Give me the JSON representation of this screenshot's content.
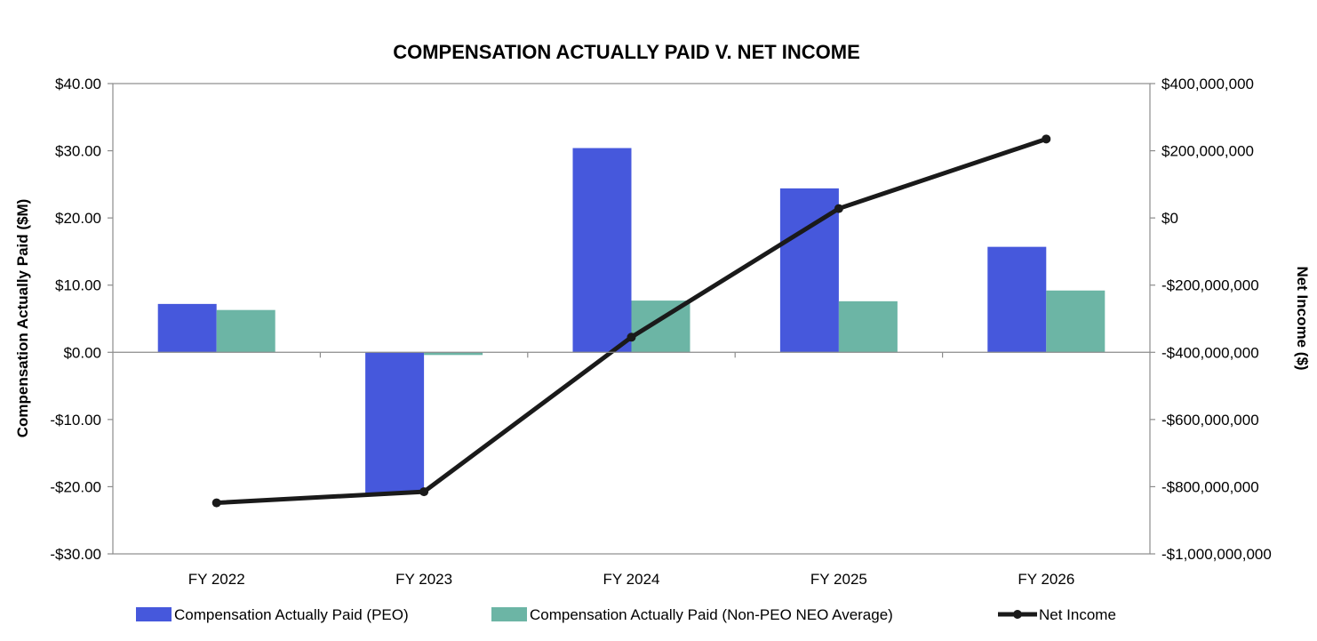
{
  "chart_data": {
    "type": "bar",
    "title": "COMPENSATION ACTUALLY PAID V. NET INCOME",
    "categories": [
      "FY 2022",
      "FY 2023",
      "FY 2024",
      "FY 2025",
      "FY 2026"
    ],
    "y_left": {
      "label": "Compensation Actually Paid ($M)",
      "range": [
        -30,
        40
      ],
      "ticks": [
        40,
        30,
        20,
        10,
        0,
        -10,
        -20,
        -30
      ],
      "tick_labels": [
        "$40.00",
        "$30.00",
        "$20.00",
        "$10.00",
        "$0.00",
        "-$10.00",
        "-$20.00",
        "-$30.00"
      ]
    },
    "y_right": {
      "label": "Net Income ($)",
      "range": [
        -1000000000,
        400000000
      ],
      "ticks": [
        400000000,
        200000000,
        0,
        -200000000,
        -400000000,
        -600000000,
        -800000000,
        -1000000000
      ],
      "tick_labels": [
        "$400,000,000",
        "$200,000,000",
        "$0",
        "-$200,000,000",
        "-$400,000,000",
        "-$600,000,000",
        "-$800,000,000",
        "-$1,000,000,000"
      ]
    },
    "series": [
      {
        "name": "Compensation Actually Paid (PEO)",
        "type": "bar",
        "axis": "left",
        "color": "#4658DC",
        "values": [
          7.2,
          -21.0,
          30.4,
          24.4,
          15.7
        ]
      },
      {
        "name": "Compensation Actually Paid (Non-PEO NEO Average)",
        "type": "bar",
        "axis": "left",
        "color": "#6CB5A5",
        "values": [
          6.3,
          -0.4,
          7.7,
          7.6,
          9.2
        ]
      },
      {
        "name": "Net Income",
        "type": "line",
        "axis": "right",
        "color": "#1A1A1A",
        "values": [
          -848000000,
          -815000000,
          -355000000,
          28000000,
          235000000
        ]
      }
    ],
    "grid": false,
    "legend_position": "bottom"
  }
}
